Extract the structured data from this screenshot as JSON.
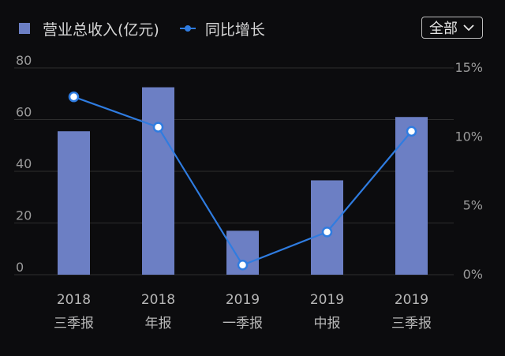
{
  "legend": {
    "bar_label": "营业总收入(亿元)",
    "line_label": "同比增长"
  },
  "period_selector": {
    "value": "全部",
    "icon": "chevron-down-icon"
  },
  "colors": {
    "bar": "#6c7fc4",
    "line": "#2f7ce0",
    "grid": "#2e2e2e",
    "background": "#0c0c0e"
  },
  "chart_data": {
    "type": "bar",
    "categories": [
      [
        "2018",
        "三季报"
      ],
      [
        "2018",
        "年报"
      ],
      [
        "2019",
        "一季报"
      ],
      [
        "2019",
        "中报"
      ],
      [
        "2019",
        "三季报"
      ]
    ],
    "series": [
      {
        "name": "营业总收入(亿元)",
        "type": "bar",
        "axis": "left",
        "values": [
          55.5,
          72.5,
          17,
          36.5,
          61
        ]
      },
      {
        "name": "同比增长",
        "type": "line",
        "axis": "right",
        "values": [
          12.9,
          10.7,
          0.7,
          3.1,
          10.4
        ]
      }
    ],
    "y_left": {
      "ticks": [
        "0",
        "20",
        "40",
        "60",
        "80"
      ],
      "range": [
        0,
        80
      ]
    },
    "y_right": {
      "ticks": [
        "0%",
        "5%",
        "10%",
        "15%"
      ],
      "range": [
        0,
        15
      ]
    },
    "grid": true,
    "legend_position": "top-left"
  }
}
